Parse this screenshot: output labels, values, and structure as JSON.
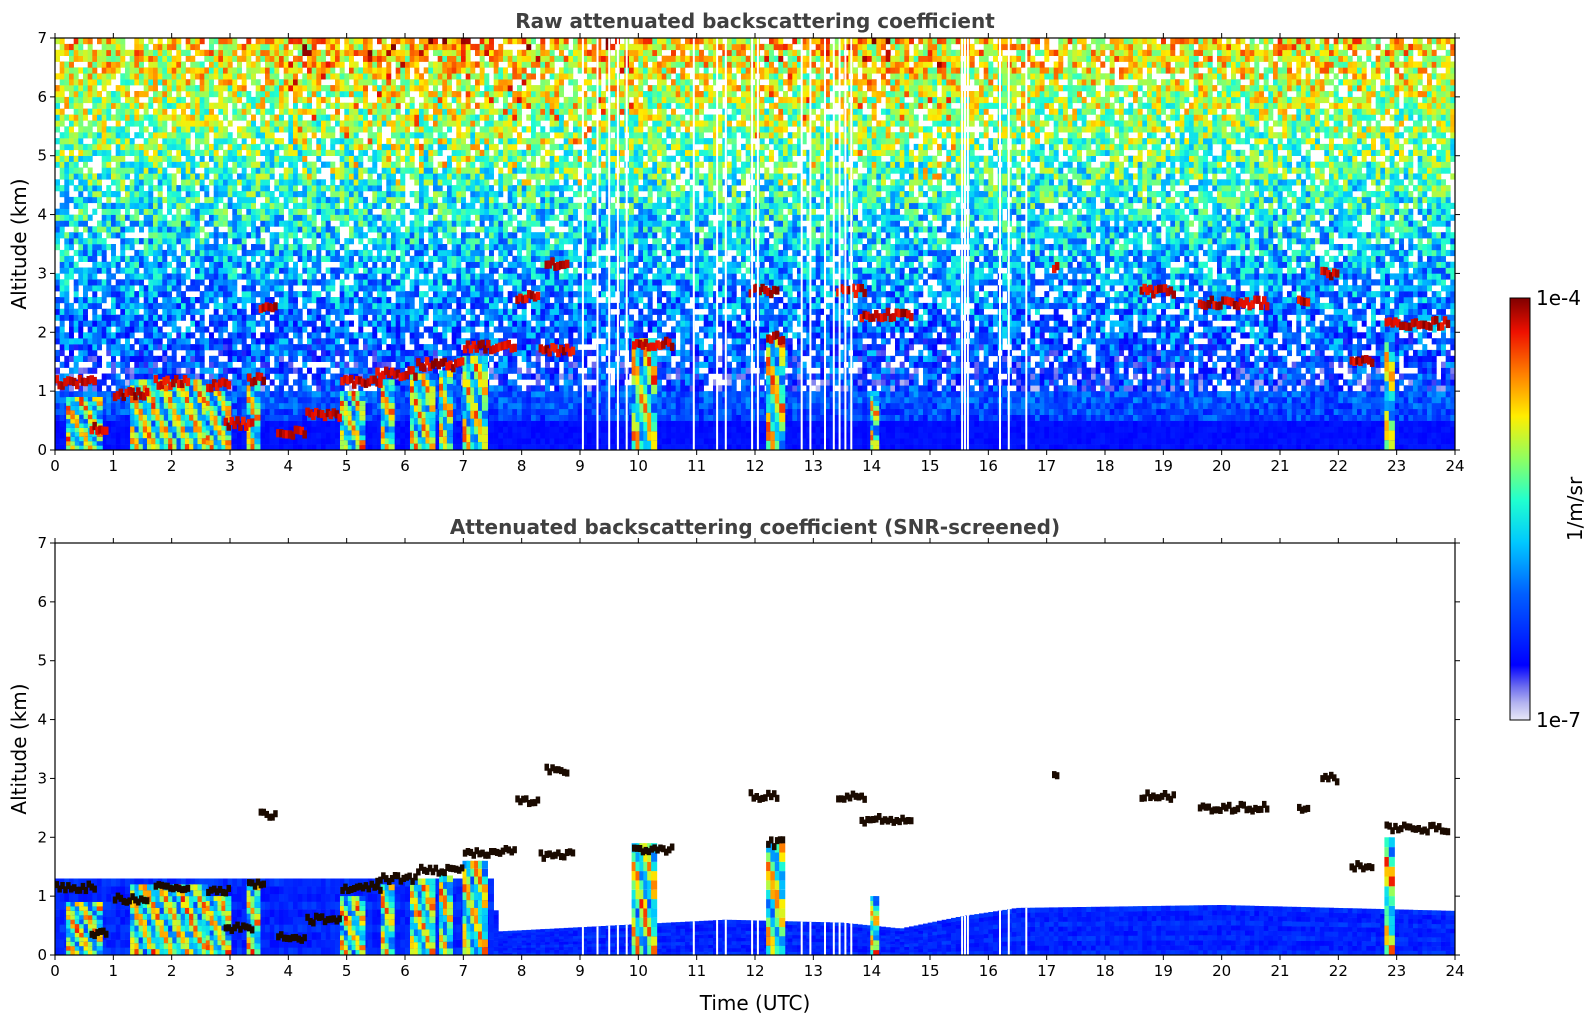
{
  "chart_data": [
    {
      "type": "heatmap",
      "title": "Raw attenuated backscattering coefficient",
      "xlabel": "",
      "ylabel": "Altitude (km)",
      "xlim": [
        0,
        24
      ],
      "ylim": [
        0,
        7
      ],
      "xticks": [
        "0",
        "1",
        "2",
        "3",
        "4",
        "5",
        "6",
        "7",
        "8",
        "9",
        "10",
        "11",
        "12",
        "13",
        "14",
        "15",
        "16",
        "17",
        "18",
        "19",
        "20",
        "21",
        "22",
        "23",
        "24"
      ],
      "yticks": [
        "0",
        "1",
        "2",
        "3",
        "4",
        "5",
        "6",
        "7"
      ],
      "screened": false,
      "cloud_layers": [
        {
          "t0": 0.0,
          "t1": 0.7,
          "alt": 1.15
        },
        {
          "t0": 0.6,
          "t1": 0.9,
          "alt": 0.38
        },
        {
          "t0": 1.0,
          "t1": 1.6,
          "alt": 0.95
        },
        {
          "t0": 1.7,
          "t1": 2.3,
          "alt": 1.15
        },
        {
          "t0": 2.6,
          "t1": 3.0,
          "alt": 1.1
        },
        {
          "t0": 2.9,
          "t1": 3.4,
          "alt": 0.45
        },
        {
          "t0": 3.3,
          "t1": 3.6,
          "alt": 1.2
        },
        {
          "t0": 3.5,
          "t1": 3.8,
          "alt": 2.4
        },
        {
          "t0": 3.8,
          "t1": 4.3,
          "alt": 0.3
        },
        {
          "t0": 4.3,
          "t1": 4.9,
          "alt": 0.6
        },
        {
          "t0": 4.9,
          "t1": 5.6,
          "alt": 1.15
        },
        {
          "t0": 5.5,
          "t1": 6.2,
          "alt": 1.3
        },
        {
          "t0": 6.2,
          "t1": 7.0,
          "alt": 1.45
        },
        {
          "t0": 7.0,
          "t1": 7.9,
          "alt": 1.75
        },
        {
          "t0": 7.9,
          "t1": 8.3,
          "alt": 2.6
        },
        {
          "t0": 8.3,
          "t1": 8.9,
          "alt": 1.7
        },
        {
          "t0": 8.4,
          "t1": 8.8,
          "alt": 3.15
        },
        {
          "t0": 9.9,
          "t1": 10.6,
          "alt": 1.8
        },
        {
          "t0": 11.9,
          "t1": 12.4,
          "alt": 2.7
        },
        {
          "t0": 12.2,
          "t1": 12.5,
          "alt": 1.9
        },
        {
          "t0": 13.4,
          "t1": 13.9,
          "alt": 2.7
        },
        {
          "t0": 13.8,
          "t1": 14.7,
          "alt": 2.3
        },
        {
          "t0": 17.1,
          "t1": 17.2,
          "alt": 3.1
        },
        {
          "t0": 18.6,
          "t1": 19.2,
          "alt": 2.7
        },
        {
          "t0": 19.6,
          "t1": 20.8,
          "alt": 2.5
        },
        {
          "t0": 21.3,
          "t1": 21.5,
          "alt": 2.5
        },
        {
          "t0": 21.7,
          "t1": 22.0,
          "alt": 3.0
        },
        {
          "t0": 22.2,
          "t1": 22.6,
          "alt": 1.5
        },
        {
          "t0": 22.8,
          "t1": 23.9,
          "alt": 2.15
        }
      ],
      "aerosol_plumes": [
        {
          "t0": 0.2,
          "t1": 0.8,
          "top": 0.9
        },
        {
          "t0": 1.3,
          "t1": 2.6,
          "top": 1.2
        },
        {
          "t0": 2.6,
          "t1": 3.0,
          "top": 1.0
        },
        {
          "t0": 3.3,
          "t1": 3.5,
          "top": 1.2
        },
        {
          "t0": 4.9,
          "t1": 5.3,
          "top": 1.0
        },
        {
          "t0": 5.6,
          "t1": 5.8,
          "top": 1.2
        },
        {
          "t0": 6.1,
          "t1": 6.5,
          "top": 1.3
        },
        {
          "t0": 6.6,
          "t1": 6.8,
          "top": 1.35
        },
        {
          "t0": 7.0,
          "t1": 7.4,
          "top": 1.6
        },
        {
          "t0": 9.9,
          "t1": 10.3,
          "top": 1.9
        },
        {
          "t0": 12.2,
          "t1": 12.5,
          "top": 1.9
        },
        {
          "t0": 14.0,
          "t1": 14.1,
          "top": 1.0
        },
        {
          "t0": 22.8,
          "t1": 22.95,
          "top": 2.0
        }
      ],
      "missing_time_columns": [
        9.05,
        9.3,
        9.5,
        9.65,
        9.8,
        10.95,
        11.35,
        11.5,
        11.95,
        12.05,
        12.8,
        12.95,
        13.2,
        13.35,
        13.45,
        13.55,
        13.65,
        15.55,
        15.6,
        15.65,
        16.2,
        16.35,
        16.65
      ]
    },
    {
      "type": "heatmap",
      "title": "Attenuated backscattering coefficient (SNR-screened)",
      "xlabel": "Time (UTC)",
      "ylabel": "Altitude (km)",
      "xlim": [
        0,
        24
      ],
      "ylim": [
        0,
        7
      ],
      "xticks": [
        "0",
        "1",
        "2",
        "3",
        "4",
        "5",
        "6",
        "7",
        "8",
        "9",
        "10",
        "11",
        "12",
        "13",
        "14",
        "15",
        "16",
        "17",
        "18",
        "19",
        "20",
        "21",
        "22",
        "23",
        "24"
      ],
      "yticks": [
        "0",
        "1",
        "2",
        "3",
        "4",
        "5",
        "6",
        "7"
      ],
      "screened": true,
      "boundary_layer_top": [
        {
          "t": 0,
          "top": 1.3
        },
        {
          "t": 7.5,
          "top": 1.3
        },
        {
          "t": 7.6,
          "top": 0.4
        },
        {
          "t": 10.5,
          "top": 0.55
        },
        {
          "t": 11.5,
          "top": 0.6
        },
        {
          "t": 13.5,
          "top": 0.55
        },
        {
          "t": 14.5,
          "top": 0.45
        },
        {
          "t": 15.5,
          "top": 0.65
        },
        {
          "t": 16.5,
          "top": 0.8
        },
        {
          "t": 20,
          "top": 0.85
        },
        {
          "t": 24,
          "top": 0.75
        }
      ]
    }
  ],
  "colorbar": {
    "label": "1/m/sr",
    "max_label": "1e-4",
    "min_label": "1e-7",
    "colormap": "jet",
    "scale": "log"
  }
}
